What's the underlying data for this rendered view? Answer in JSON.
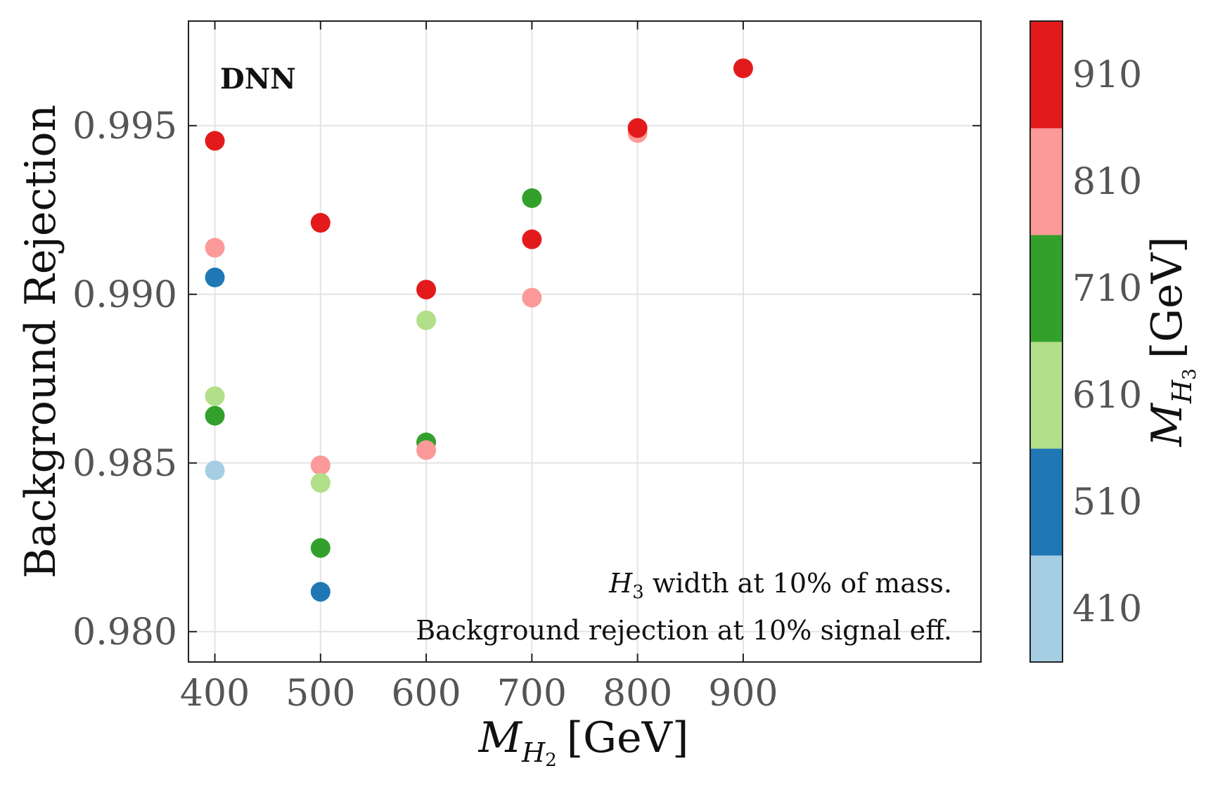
{
  "chart_data": {
    "type": "scatter",
    "title": "",
    "panel_label": "DNN",
    "xlabel": {
      "main": "M",
      "sub": "H",
      "subsub": "2",
      "unit": "[GeV]"
    },
    "ylabel": "Background Rejection",
    "xlim": [
      375,
      1125
    ],
    "ylim": [
      0.9791,
      0.9981
    ],
    "x_ticks": [
      400,
      500,
      600,
      700,
      800,
      900
    ],
    "y_ticks": [
      0.98,
      0.985,
      0.99,
      0.995
    ],
    "y_tick_labels": [
      "0.980",
      "0.985",
      "0.990",
      "0.995"
    ],
    "grid": true,
    "annotations": {
      "line1_pre": "H",
      "line1_sub": "3",
      "line1_post": " width at 10% of mass.",
      "line2": "Background rejection at 10% signal eff."
    },
    "colorbar": {
      "label": {
        "main": "M",
        "sub": "H",
        "subsub": "3",
        "unit": "[GeV]"
      },
      "bins": [
        {
          "label": "410",
          "color": "#a6cee3"
        },
        {
          "label": "510",
          "color": "#1f78b4"
        },
        {
          "label": "610",
          "color": "#b2df8a"
        },
        {
          "label": "710",
          "color": "#33a02c"
        },
        {
          "label": "810",
          "color": "#fb9a99"
        },
        {
          "label": "910",
          "color": "#e31a1c"
        }
      ]
    },
    "points": [
      {
        "x": 400,
        "y": 0.99455,
        "mH3": 910
      },
      {
        "x": 400,
        "y": 0.99138,
        "mH3": 810
      },
      {
        "x": 400,
        "y": 0.9905,
        "mH3": 510
      },
      {
        "x": 400,
        "y": 0.98698,
        "mH3": 610
      },
      {
        "x": 400,
        "y": 0.9864,
        "mH3": 710
      },
      {
        "x": 400,
        "y": 0.98478,
        "mH3": 410
      },
      {
        "x": 500,
        "y": 0.99212,
        "mH3": 910
      },
      {
        "x": 500,
        "y": 0.98493,
        "mH3": 810
      },
      {
        "x": 500,
        "y": 0.98441,
        "mH3": 610
      },
      {
        "x": 500,
        "y": 0.98248,
        "mH3": 710
      },
      {
        "x": 500,
        "y": 0.98118,
        "mH3": 510
      },
      {
        "x": 600,
        "y": 0.99014,
        "mH3": 910
      },
      {
        "x": 600,
        "y": 0.98923,
        "mH3": 610
      },
      {
        "x": 600,
        "y": 0.98561,
        "mH3": 710
      },
      {
        "x": 600,
        "y": 0.98538,
        "mH3": 810
      },
      {
        "x": 700,
        "y": 0.99285,
        "mH3": 710
      },
      {
        "x": 700,
        "y": 0.99163,
        "mH3": 910
      },
      {
        "x": 700,
        "y": 0.9899,
        "mH3": 810
      },
      {
        "x": 800,
        "y": 0.99478,
        "mH3": 810
      },
      {
        "x": 800,
        "y": 0.99493,
        "mH3": 910
      },
      {
        "x": 900,
        "y": 0.9967,
        "mH3": 910
      }
    ]
  }
}
